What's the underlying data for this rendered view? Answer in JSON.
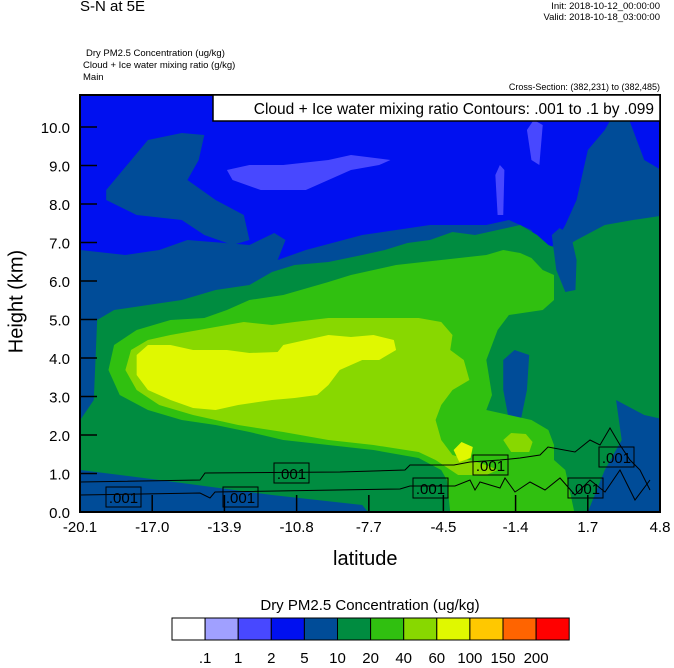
{
  "header": {
    "title": "S-N at 5E",
    "init": "Init: 2018-10-12_00:00:00",
    "valid": "Valid: 2018-10-18_03:00:00",
    "fields": [
      "Dry PM2.5 Concentration   (ug/kg)",
      "Cloud + Ice water mixing ratio   (g/kg)",
      "Main"
    ],
    "cross_section": "Cross-Section: (382,231) to (382,485)"
  },
  "chart_data": {
    "type": "heatmap",
    "style": "filled contour cross-section",
    "xlabel": "latitude",
    "ylabel": "Height (km)",
    "xlim": [
      -20.1,
      4.8
    ],
    "ylim": [
      0,
      10.8
    ],
    "x_ticks": [
      -20.1,
      -17.0,
      -13.9,
      -10.8,
      -7.7,
      -4.5,
      -1.4,
      1.7,
      4.8
    ],
    "x_tick_labels": [
      "-20.1",
      "-17.0",
      "-13.9",
      "-10.8",
      "-7.7",
      "-4.5",
      "-1.4",
      "1.7",
      "4.8"
    ],
    "y_ticks": [
      0,
      1,
      2,
      3,
      4,
      5,
      6,
      7,
      8,
      9,
      10
    ],
    "y_tick_labels": [
      "0.0",
      "1.0",
      "2.0",
      "3.0",
      "4.0",
      "5.0",
      "6.0",
      "7.0",
      "8.0",
      "9.0",
      "10.0"
    ],
    "grid": false,
    "colorbar": {
      "title": "Dry PM2.5 Concentration  (ug/kg)",
      "levels": [
        ".1",
        "1",
        "2",
        "5",
        "10",
        "20",
        "40",
        "60",
        "100",
        "150",
        "200"
      ],
      "colors": [
        "#ffffff",
        "#a0a0ff",
        "#4848ff",
        "#0010f0",
        "#004c98",
        "#008c40",
        "#30c010",
        "#88d800",
        "#e0f800",
        "#ffc800",
        "#ff6400",
        "#ff0000"
      ],
      "placement": "bottom"
    },
    "overlay": {
      "legend": "Cloud + Ice water mixing ratio Contours: .001 to .1 by .099",
      "legend_placement": "top-right",
      "contour_label": ".001",
      "contour_color": "#000000"
    }
  }
}
